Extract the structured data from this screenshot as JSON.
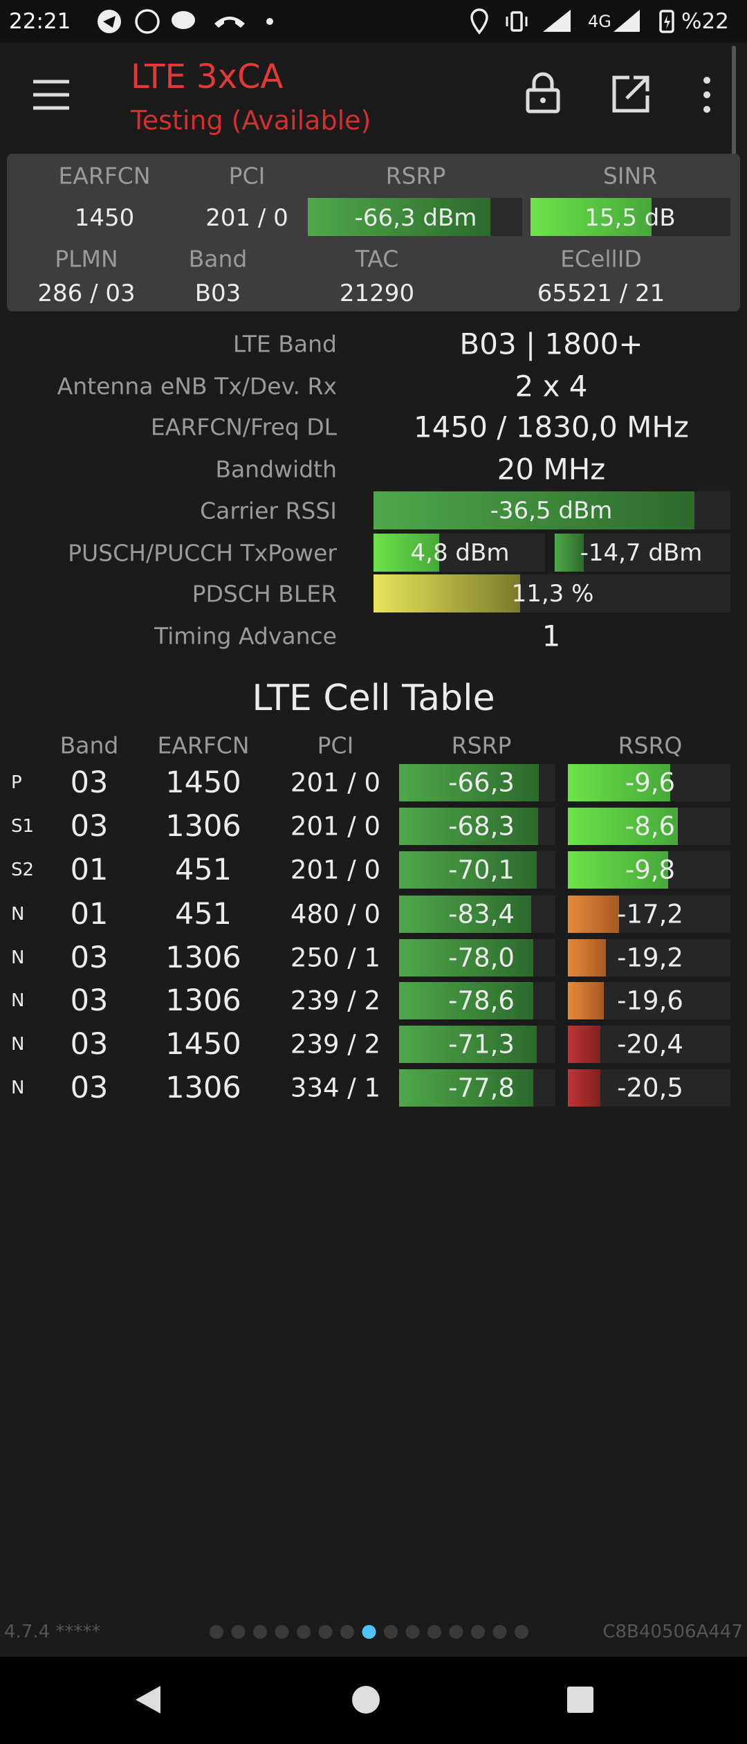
{
  "status_bar": {
    "time": "22:21",
    "network": "4G",
    "battery": "%22"
  },
  "app_bar": {
    "title": "LTE 3xCA",
    "subtitle": "Testing (Available)"
  },
  "summary": {
    "labels": [
      "EARFCN",
      "PCI",
      "RSRP",
      "SINR",
      "PLMN",
      "Band",
      "TAC",
      "ECellID"
    ],
    "values": [
      "1450",
      "201 / 0",
      "-66,3 dBm",
      "15,5 dB",
      "286 / 03",
      "B03",
      "21290",
      "65521 / 21"
    ]
  },
  "details": [
    {
      "label": "LTE Band",
      "values": [
        "B03 | 1800+"
      ]
    },
    {
      "label": "Antenna eNB Tx/Dev. Rx",
      "values": [
        "2 x 4"
      ]
    },
    {
      "label": "EARFCN/Freq DL",
      "values": [
        "1450 / 1830,0 MHz"
      ]
    },
    {
      "label": "Bandwidth",
      "values": [
        "20 MHz"
      ]
    },
    {
      "label": "Carrier RSSI",
      "values": [
        "-36,5 dBm"
      ]
    },
    {
      "label": "PUSCH/PUCCH TxPower",
      "values": [
        "4,8 dBm",
        "-14,7 dBm"
      ]
    },
    {
      "label": "PDSCH BLER",
      "values": [
        "11,3 %"
      ]
    },
    {
      "label": "Timing Advance",
      "values": [
        "1"
      ]
    }
  ],
  "cell_table": {
    "title": "LTE Cell Table",
    "headers": [
      "Band",
      "EARFCN",
      "PCI",
      "RSRP",
      "RSRQ"
    ],
    "rows": [
      [
        "P",
        "03",
        "1450",
        "201 / 0",
        "-66,3",
        "-9,6"
      ],
      [
        "S1",
        "03",
        "1306",
        "201 / 0",
        "-68,3",
        "-8,6"
      ],
      [
        "S2",
        "01",
        "451",
        "201 / 0",
        "-70,1",
        "-9,8"
      ],
      [
        "N",
        "01",
        "451",
        "480 / 0",
        "-83,4",
        "-17,2"
      ],
      [
        "N",
        "03",
        "1306",
        "250 / 1",
        "-78,0",
        "-19,2"
      ],
      [
        "N",
        "03",
        "1306",
        "239 / 2",
        "-78,6",
        "-19,6"
      ],
      [
        "N",
        "03",
        "1450",
        "239 / 2",
        "-71,3",
        "-20,4"
      ],
      [
        "N",
        "03",
        "1306",
        "334 / 1",
        "-77,8",
        "-20,5"
      ]
    ]
  },
  "footer": {
    "version": "4.7.4 *****",
    "device_id": "C8B40506A447"
  }
}
